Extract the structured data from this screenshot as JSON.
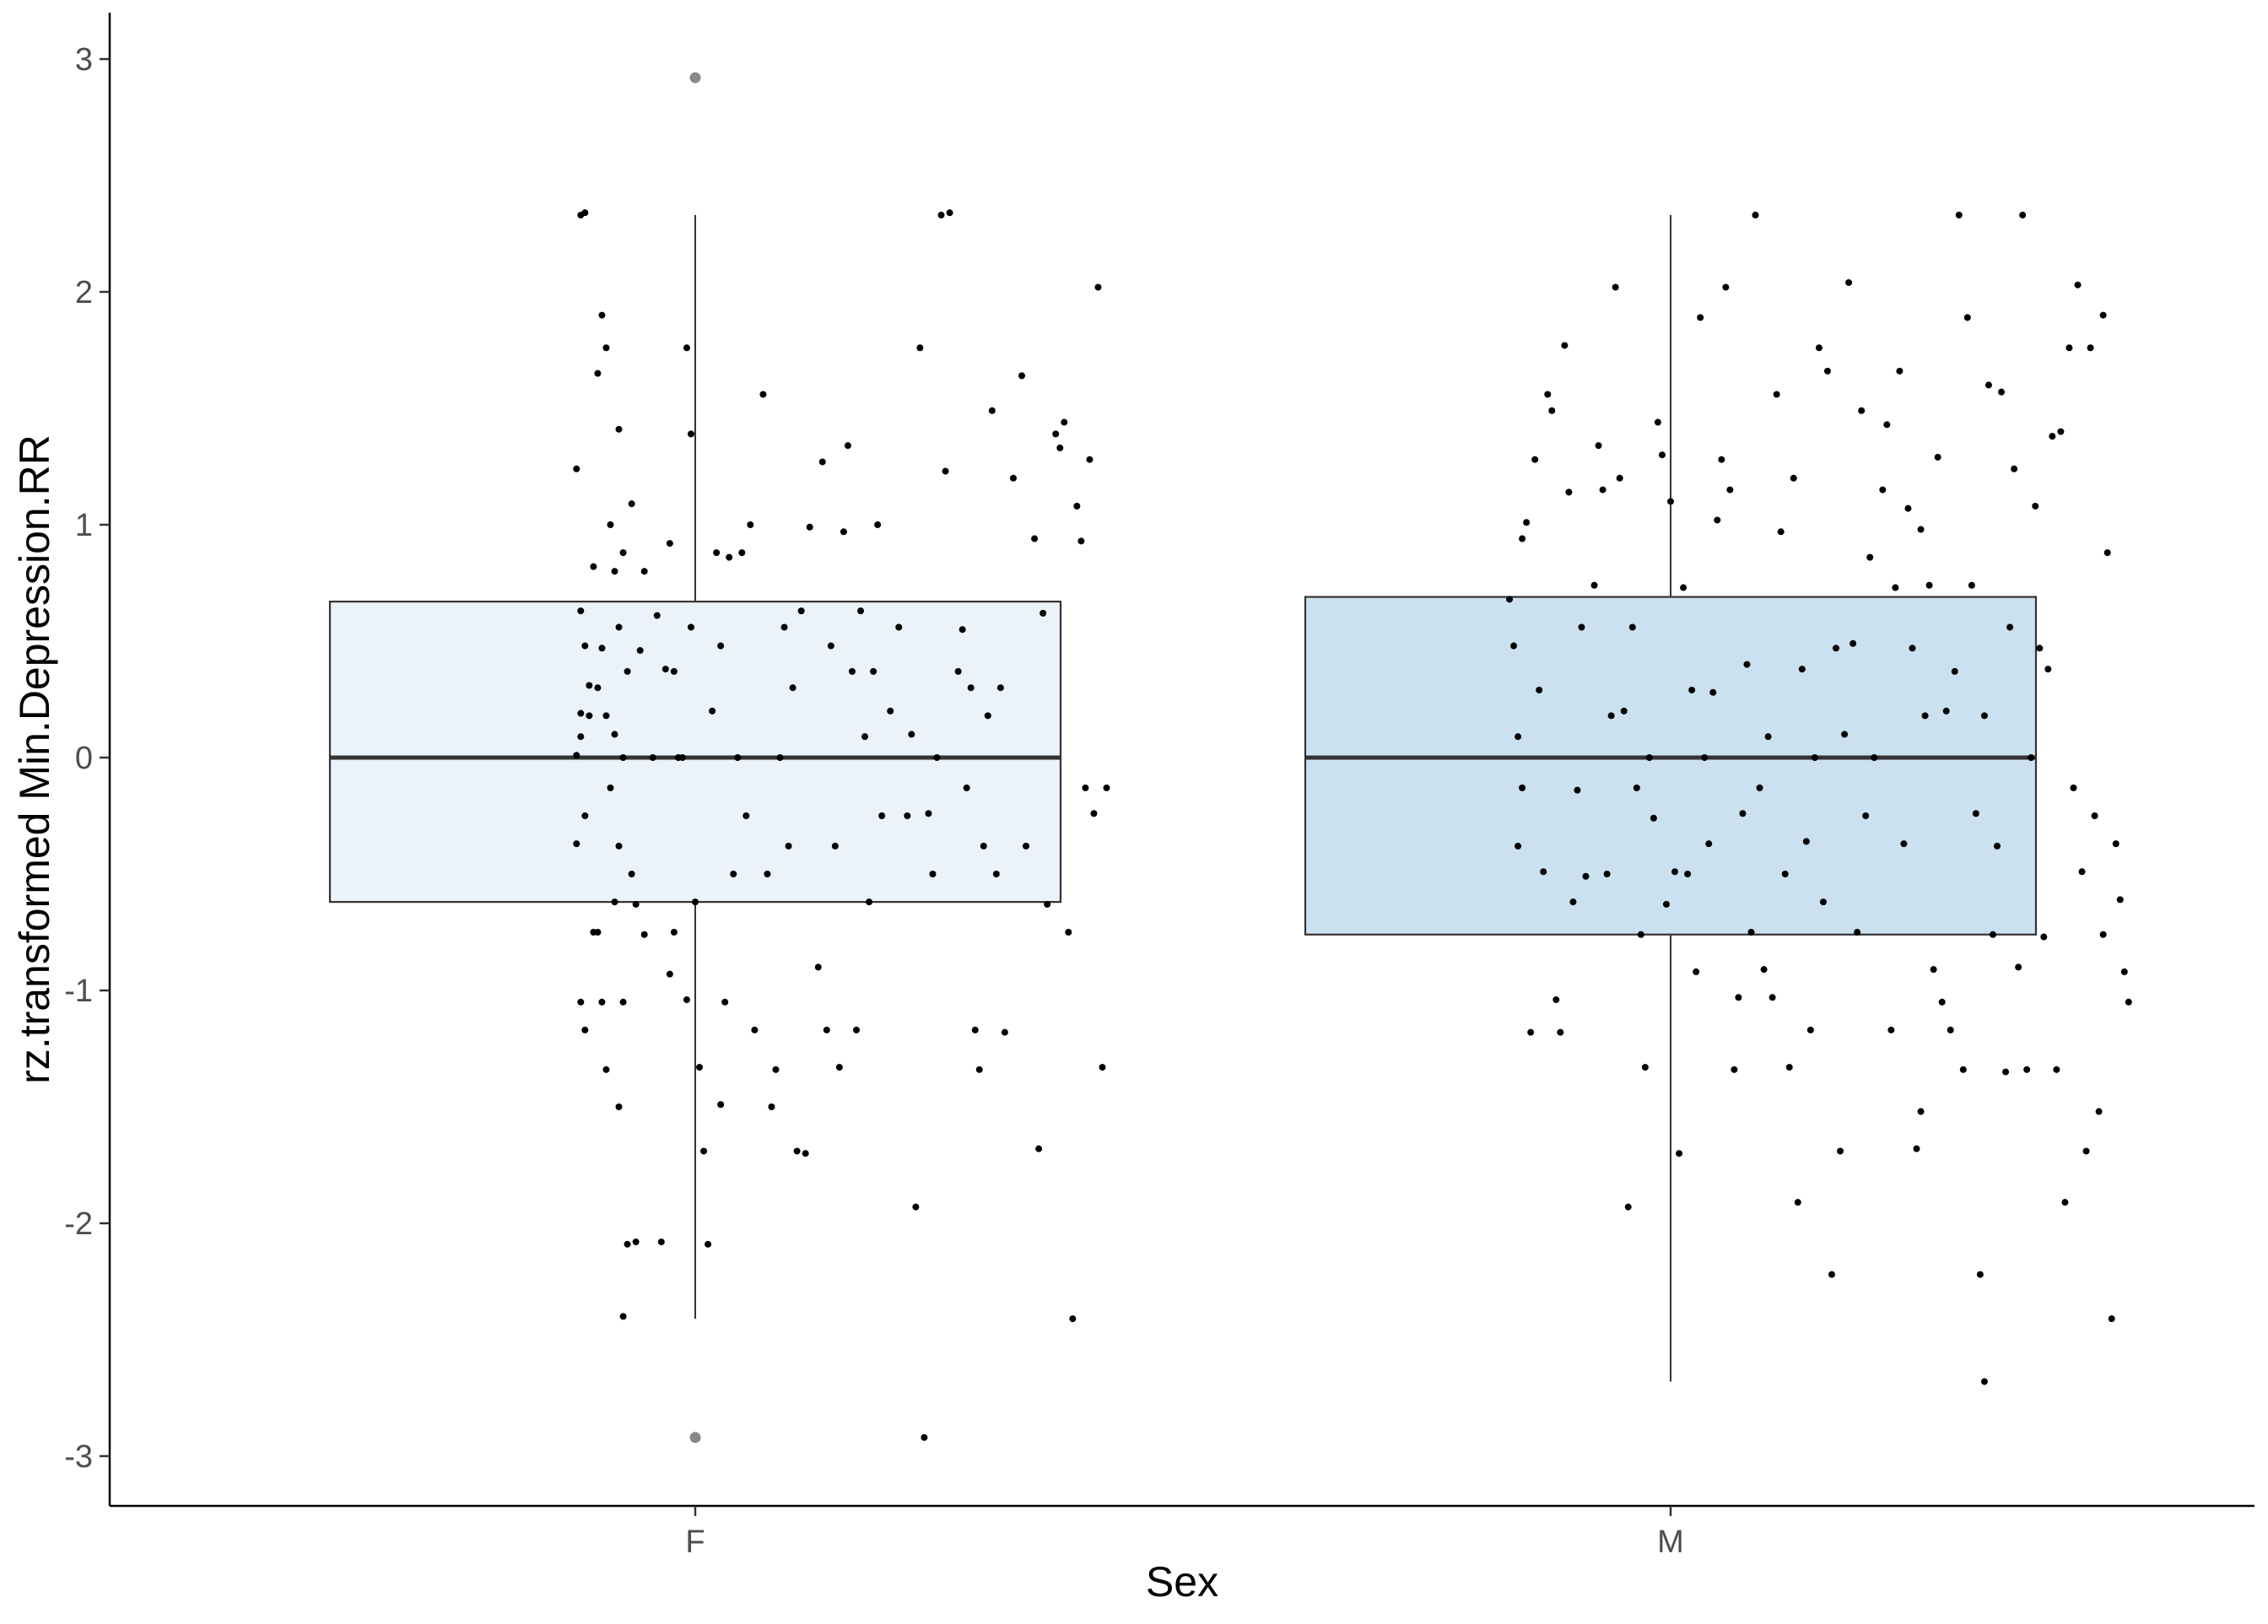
{
  "chart_data": {
    "type": "boxplot",
    "xlabel": "Sex",
    "ylabel": "rz.transformed Min.Depression.RR",
    "categories": [
      "F",
      "M"
    ],
    "ylim": [
      -3.2,
      3.2
    ],
    "yticks": [
      -3,
      -2,
      -1,
      0,
      1,
      2,
      3
    ],
    "ytick_labels": [
      "-3",
      "-2",
      "-1",
      "0",
      "1",
      "2",
      "3"
    ],
    "grid": false,
    "legend": "none",
    "colors": {
      "F_fill": "#ebf2fa",
      "M_fill": "#cbe1ef",
      "box_line": "#333333",
      "median": "#333333",
      "point": "#000000",
      "outlier": "#888888"
    },
    "boxes": [
      {
        "category": "F",
        "q1": -0.62,
        "median": 0.0,
        "q3": 0.67,
        "whisker_low": -2.41,
        "whisker_high": 2.33,
        "outliers": [
          2.92,
          -2.92
        ]
      },
      {
        "category": "M",
        "q1": -0.76,
        "median": 0.0,
        "q3": 0.69,
        "whisker_low": -2.68,
        "whisker_high": 2.33,
        "outliers": []
      }
    ],
    "points": {
      "F": [
        [
          -0.27,
          2.33
        ],
        [
          -0.26,
          2.34
        ],
        [
          -0.28,
          1.24
        ],
        [
          -0.24,
          0.82
        ],
        [
          -0.27,
          0.63
        ],
        [
          -0.26,
          0.48
        ],
        [
          -0.25,
          0.31
        ],
        [
          -0.27,
          0.19
        ],
        [
          -0.25,
          0.18
        ],
        [
          -0.27,
          0.09
        ],
        [
          -0.28,
          0.01
        ],
        [
          -0.26,
          -0.25
        ],
        [
          -0.28,
          -0.37
        ],
        [
          -0.24,
          -0.75
        ],
        [
          -0.27,
          -1.05
        ],
        [
          -0.26,
          -1.17
        ],
        [
          -0.22,
          1.9
        ],
        [
          -0.21,
          1.76
        ],
        [
          -0.23,
          1.65
        ],
        [
          -0.2,
          1.0
        ],
        [
          -0.22,
          0.47
        ],
        [
          -0.23,
          0.3
        ],
        [
          -0.21,
          0.18
        ],
        [
          -0.2,
          -0.13
        ],
        [
          -0.23,
          -0.75
        ],
        [
          -0.22,
          -1.05
        ],
        [
          -0.21,
          -1.34
        ],
        [
          -0.18,
          1.41
        ],
        [
          -0.19,
          0.8
        ],
        [
          -0.17,
          0.88
        ],
        [
          -0.18,
          0.56
        ],
        [
          -0.19,
          0.1
        ],
        [
          -0.17,
          0.0
        ],
        [
          -0.18,
          -0.38
        ],
        [
          -0.19,
          -0.62
        ],
        [
          -0.17,
          -1.05
        ],
        [
          -0.16,
          -2.09
        ],
        [
          -0.17,
          -2.4
        ],
        [
          -0.18,
          -1.5
        ],
        [
          -0.15,
          1.09
        ],
        [
          -0.16,
          0.37
        ],
        [
          -0.15,
          -0.5
        ],
        [
          -0.14,
          -0.63
        ],
        [
          -0.14,
          -2.08
        ],
        [
          -0.13,
          0.46
        ],
        [
          -0.12,
          -0.76
        ],
        [
          -0.12,
          0.8
        ],
        [
          -0.09,
          0.61
        ],
        [
          -0.1,
          0.0
        ],
        [
          -0.08,
          -2.08
        ],
        [
          -0.07,
          0.38
        ],
        [
          -0.06,
          0.92
        ],
        [
          -0.06,
          -0.93
        ],
        [
          -0.05,
          0.37
        ],
        [
          -0.04,
          0.0
        ],
        [
          -0.05,
          -0.75
        ],
        [
          -0.02,
          1.76
        ],
        [
          -0.03,
          0.0
        ],
        [
          -0.01,
          1.39
        ],
        [
          -0.01,
          0.56
        ],
        [
          -0.02,
          -1.04
        ],
        [
          0.0,
          -0.62
        ],
        [
          0.01,
          -1.33
        ],
        [
          0.02,
          -1.69
        ],
        [
          0.03,
          -2.09
        ],
        [
          0.04,
          0.2
        ],
        [
          0.05,
          0.88
        ],
        [
          0.06,
          -1.49
        ],
        [
          0.06,
          0.48
        ],
        [
          0.07,
          -1.05
        ],
        [
          0.08,
          0.86
        ],
        [
          0.09,
          -0.5
        ],
        [
          0.1,
          0.0
        ],
        [
          0.11,
          0.88
        ],
        [
          0.12,
          -0.25
        ],
        [
          0.13,
          1.0
        ],
        [
          0.14,
          -1.17
        ],
        [
          0.16,
          1.56
        ],
        [
          0.17,
          -0.5
        ],
        [
          0.18,
          -1.5
        ],
        [
          0.19,
          -1.34
        ],
        [
          0.2,
          0.0
        ],
        [
          0.21,
          0.56
        ],
        [
          0.22,
          -0.38
        ],
        [
          0.23,
          0.3
        ],
        [
          0.24,
          -1.69
        ],
        [
          0.25,
          0.63
        ],
        [
          0.26,
          -1.7
        ],
        [
          0.27,
          0.99
        ],
        [
          0.29,
          -0.9
        ],
        [
          0.3,
          1.27
        ],
        [
          0.31,
          -1.17
        ],
        [
          0.32,
          0.48
        ],
        [
          0.33,
          -0.38
        ],
        [
          0.34,
          -1.33
        ],
        [
          0.35,
          0.97
        ],
        [
          0.36,
          1.34
        ],
        [
          0.37,
          0.37
        ],
        [
          0.38,
          -1.17
        ],
        [
          0.39,
          0.63
        ],
        [
          0.4,
          0.09
        ],
        [
          0.41,
          -0.62
        ],
        [
          0.42,
          0.37
        ],
        [
          0.43,
          1.0
        ],
        [
          0.44,
          -0.25
        ],
        [
          0.46,
          0.2
        ],
        [
          0.48,
          0.56
        ],
        [
          0.5,
          -0.25
        ],
        [
          0.51,
          0.1
        ],
        [
          0.52,
          -1.93
        ],
        [
          0.53,
          1.76
        ],
        [
          0.54,
          -2.92
        ],
        [
          0.55,
          -0.24
        ],
        [
          0.56,
          -0.5
        ],
        [
          0.57,
          0.0
        ],
        [
          0.58,
          2.33
        ],
        [
          0.6,
          2.34
        ],
        [
          0.59,
          1.23
        ],
        [
          0.62,
          0.37
        ],
        [
          0.63,
          0.55
        ],
        [
          0.64,
          -0.13
        ],
        [
          0.65,
          0.3
        ],
        [
          0.66,
          -1.17
        ],
        [
          0.67,
          -1.34
        ],
        [
          0.68,
          -0.38
        ],
        [
          0.69,
          0.18
        ],
        [
          0.7,
          1.49
        ],
        [
          0.71,
          -0.5
        ],
        [
          0.72,
          0.3
        ],
        [
          0.73,
          -1.18
        ],
        [
          0.75,
          1.2
        ],
        [
          0.77,
          1.64
        ],
        [
          0.78,
          -0.38
        ],
        [
          0.8,
          0.94
        ],
        [
          0.81,
          -1.68
        ],
        [
          0.82,
          0.62
        ],
        [
          0.83,
          -0.63
        ],
        [
          0.85,
          1.39
        ],
        [
          0.86,
          1.33
        ],
        [
          0.87,
          1.44
        ],
        [
          0.88,
          -0.75
        ],
        [
          0.89,
          -2.41
        ],
        [
          0.9,
          1.08
        ],
        [
          0.91,
          0.93
        ],
        [
          0.92,
          -0.13
        ],
        [
          0.93,
          1.28
        ],
        [
          0.94,
          -0.24
        ],
        [
          0.95,
          2.02
        ],
        [
          0.96,
          -1.33
        ],
        [
          0.97,
          -0.13
        ]
      ],
      "M": [
        [
          -0.38,
          0.68
        ],
        [
          -0.37,
          0.48
        ],
        [
          -0.36,
          0.09
        ],
        [
          -0.35,
          -0.13
        ],
        [
          -0.36,
          -0.38
        ],
        [
          -0.35,
          0.94
        ],
        [
          -0.34,
          1.01
        ],
        [
          -0.33,
          -1.18
        ],
        [
          -0.32,
          1.28
        ],
        [
          -0.31,
          0.29
        ],
        [
          -0.3,
          -0.49
        ],
        [
          -0.29,
          1.56
        ],
        [
          -0.28,
          1.49
        ],
        [
          -0.27,
          -1.04
        ],
        [
          -0.26,
          -1.18
        ],
        [
          -0.25,
          1.77
        ],
        [
          -0.24,
          1.14
        ],
        [
          -0.23,
          -0.62
        ],
        [
          -0.22,
          -0.14
        ],
        [
          -0.21,
          0.56
        ],
        [
          -0.2,
          -0.51
        ],
        [
          -0.18,
          0.74
        ],
        [
          -0.17,
          1.34
        ],
        [
          -0.16,
          1.15
        ],
        [
          -0.15,
          -0.5
        ],
        [
          -0.14,
          0.18
        ],
        [
          -0.13,
          2.02
        ],
        [
          -0.12,
          1.2
        ],
        [
          -0.11,
          0.2
        ],
        [
          -0.1,
          -1.93
        ],
        [
          -0.09,
          0.56
        ],
        [
          -0.08,
          -0.13
        ],
        [
          -0.07,
          -0.76
        ],
        [
          -0.06,
          -1.33
        ],
        [
          -0.05,
          0.0
        ],
        [
          -0.04,
          -0.26
        ],
        [
          -0.03,
          1.44
        ],
        [
          -0.02,
          1.3
        ],
        [
          -0.01,
          -0.63
        ],
        [
          0.0,
          1.1
        ],
        [
          0.01,
          -0.49
        ],
        [
          0.02,
          -1.7
        ],
        [
          0.03,
          0.73
        ],
        [
          0.04,
          -0.5
        ],
        [
          0.05,
          0.29
        ],
        [
          0.06,
          -0.92
        ],
        [
          0.07,
          1.89
        ],
        [
          0.08,
          0.0
        ],
        [
          0.09,
          -0.37
        ],
        [
          0.1,
          0.28
        ],
        [
          0.11,
          1.02
        ],
        [
          0.12,
          1.28
        ],
        [
          0.13,
          2.02
        ],
        [
          0.14,
          1.15
        ],
        [
          0.15,
          -1.34
        ],
        [
          0.16,
          -1.03
        ],
        [
          0.17,
          -0.24
        ],
        [
          0.18,
          0.4
        ],
        [
          0.19,
          -0.75
        ],
        [
          0.2,
          2.33
        ],
        [
          0.21,
          -0.13
        ],
        [
          0.22,
          -0.91
        ],
        [
          0.23,
          0.09
        ],
        [
          0.24,
          -1.03
        ],
        [
          0.25,
          1.56
        ],
        [
          0.26,
          0.97
        ],
        [
          0.27,
          -0.5
        ],
        [
          0.28,
          -1.33
        ],
        [
          0.29,
          1.2
        ],
        [
          0.3,
          -1.91
        ],
        [
          0.31,
          0.38
        ],
        [
          0.32,
          -0.36
        ],
        [
          0.33,
          -1.17
        ],
        [
          0.34,
          0.0
        ],
        [
          0.35,
          1.76
        ],
        [
          0.36,
          -0.62
        ],
        [
          0.37,
          1.66
        ],
        [
          0.38,
          -2.22
        ],
        [
          0.39,
          0.47
        ],
        [
          0.4,
          -1.69
        ],
        [
          0.41,
          0.1
        ],
        [
          0.42,
          2.04
        ],
        [
          0.43,
          0.49
        ],
        [
          0.44,
          -0.75
        ],
        [
          0.45,
          1.49
        ],
        [
          0.46,
          -0.25
        ],
        [
          0.47,
          0.86
        ],
        [
          0.48,
          0.0
        ],
        [
          0.5,
          1.15
        ],
        [
          0.51,
          1.43
        ],
        [
          0.52,
          -1.17
        ],
        [
          0.53,
          0.73
        ],
        [
          0.54,
          1.66
        ],
        [
          0.55,
          -0.37
        ],
        [
          0.56,
          1.07
        ],
        [
          0.57,
          0.47
        ],
        [
          0.58,
          -1.68
        ],
        [
          0.59,
          0.98
        ],
        [
          0.6,
          0.18
        ],
        [
          0.61,
          0.74
        ],
        [
          0.62,
          -0.91
        ],
        [
          0.63,
          1.29
        ],
        [
          0.64,
          -1.05
        ],
        [
          0.65,
          0.2
        ],
        [
          0.66,
          -1.17
        ],
        [
          0.67,
          0.37
        ],
        [
          0.68,
          2.33
        ],
        [
          0.69,
          -1.34
        ],
        [
          0.7,
          1.89
        ],
        [
          0.71,
          0.74
        ],
        [
          0.72,
          -0.24
        ],
        [
          0.73,
          -2.22
        ],
        [
          0.74,
          0.18
        ],
        [
          0.75,
          1.6
        ],
        [
          0.76,
          -0.76
        ],
        [
          0.77,
          -0.38
        ],
        [
          0.78,
          1.57
        ],
        [
          0.79,
          -1.35
        ],
        [
          0.8,
          0.56
        ],
        [
          0.81,
          1.24
        ],
        [
          0.82,
          -0.9
        ],
        [
          0.83,
          2.33
        ],
        [
          0.84,
          -1.34
        ],
        [
          0.85,
          0.0
        ],
        [
          0.86,
          1.08
        ],
        [
          0.87,
          0.47
        ],
        [
          0.88,
          -0.77
        ],
        [
          0.89,
          0.38
        ],
        [
          0.9,
          1.38
        ],
        [
          0.91,
          -1.34
        ],
        [
          0.92,
          1.4
        ],
        [
          0.93,
          -1.91
        ],
        [
          0.94,
          1.76
        ],
        [
          0.95,
          -0.13
        ],
        [
          0.96,
          2.03
        ],
        [
          0.97,
          -0.49
        ],
        [
          0.98,
          -1.69
        ],
        [
          0.99,
          1.76
        ],
        [
          1.0,
          -0.25
        ],
        [
          1.01,
          -1.52
        ],
        [
          1.02,
          1.9
        ],
        [
          1.03,
          0.88
        ],
        [
          1.04,
          -2.41
        ],
        [
          1.05,
          -0.37
        ],
        [
          1.06,
          -0.61
        ],
        [
          1.07,
          -0.92
        ],
        [
          1.08,
          -1.05
        ],
        [
          1.02,
          -0.76
        ],
        [
          0.74,
          -2.68
        ],
        [
          0.59,
          -1.52
        ]
      ]
    }
  }
}
